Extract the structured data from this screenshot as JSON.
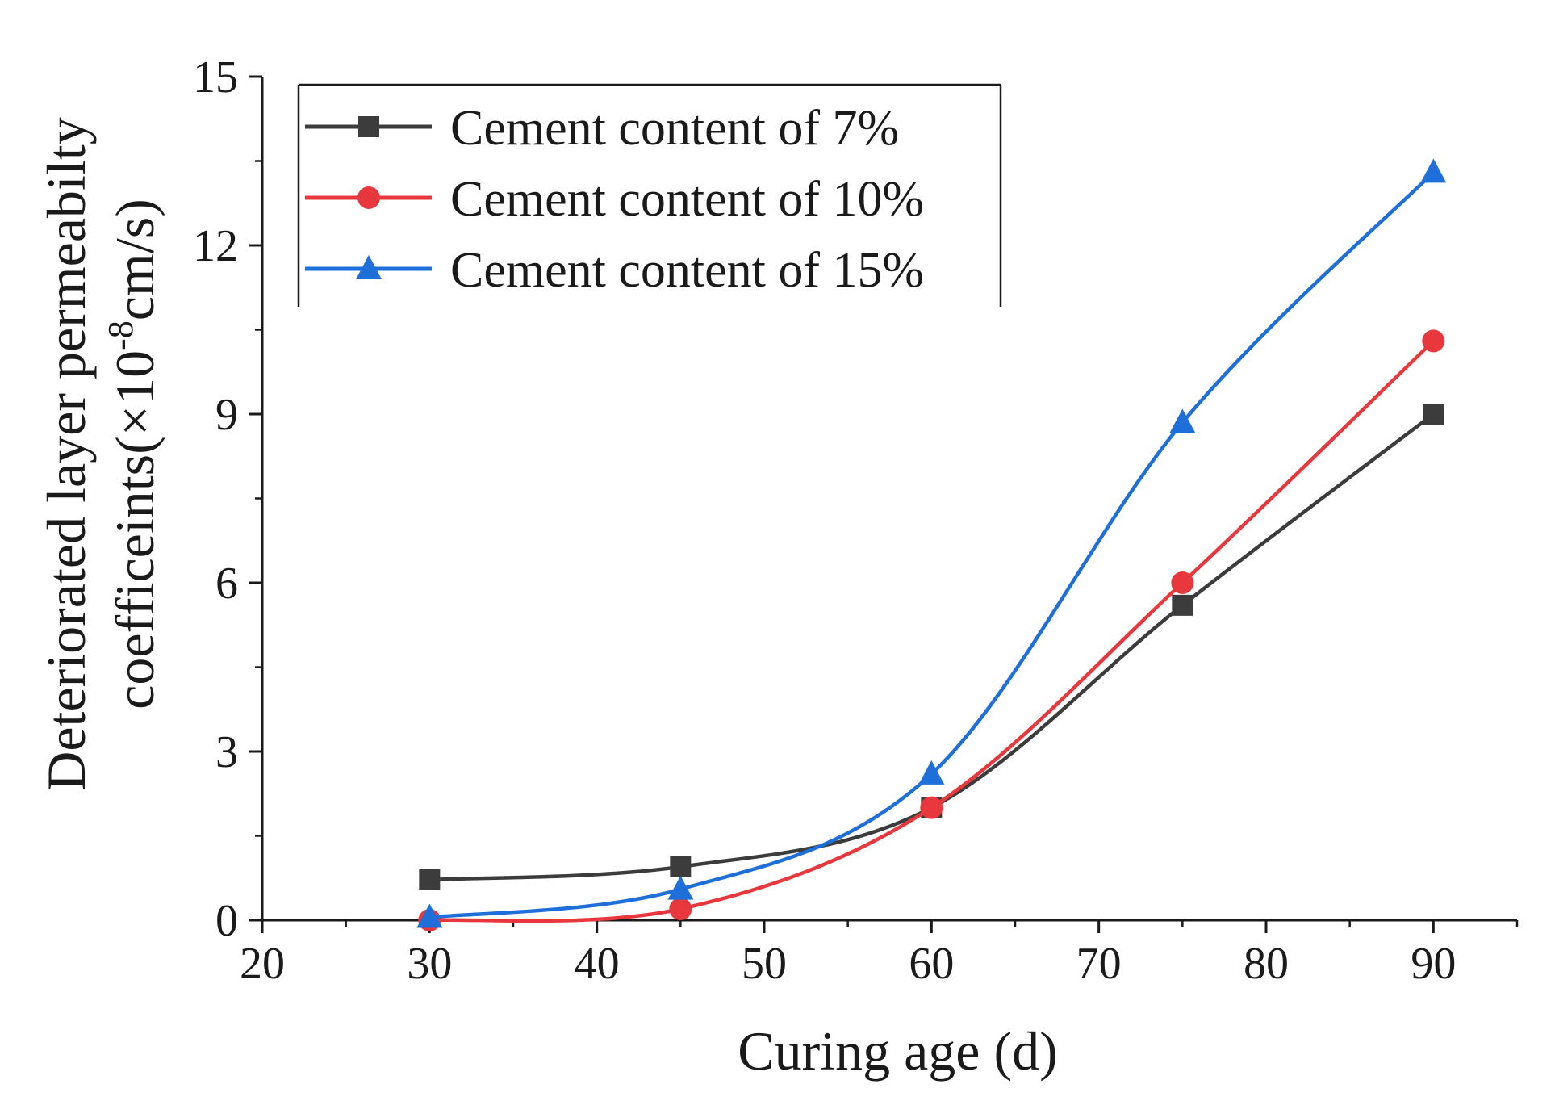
{
  "chart_data": {
    "type": "line",
    "title": "",
    "xlabel": "Curing age (d)",
    "ylabel_line1": "Deteriorated layer permeabilty",
    "ylabel_line2_prefix": "coefficeints(×10",
    "ylabel_line2_exponent": "-8",
    "ylabel_line2_suffix": "cm/s)",
    "xlim": [
      20,
      95
    ],
    "ylim": [
      0,
      15
    ],
    "xticks": [
      20,
      30,
      40,
      50,
      60,
      70,
      80,
      90
    ],
    "yticks": [
      0,
      3,
      6,
      9,
      12,
      15
    ],
    "x": [
      30,
      45,
      60,
      75,
      90
    ],
    "legend_position": "top-left",
    "series": [
      {
        "name": "Cement content of 7%",
        "color": "#3c3c3c",
        "marker": "square",
        "values": [
          0.72,
          0.95,
          2.0,
          5.6,
          9.0
        ]
      },
      {
        "name": "Cement content of 10%",
        "color": "#e8383d",
        "marker": "circle",
        "values": [
          0.0,
          0.2,
          2.0,
          6.0,
          10.3
        ]
      },
      {
        "name": "Cement content of 15%",
        "color": "#1e6fd9",
        "marker": "triangle",
        "values": [
          0.05,
          0.55,
          2.6,
          8.85,
          13.3
        ]
      }
    ]
  }
}
